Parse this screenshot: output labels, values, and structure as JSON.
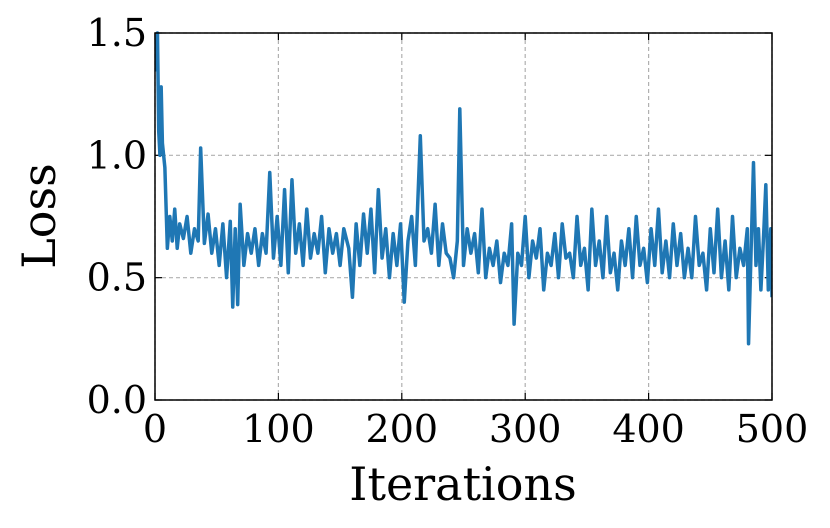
{
  "chart_data": {
    "type": "line",
    "xlabel": "Iterations",
    "ylabel": "Loss",
    "x": [
      0,
      1,
      2,
      3,
      4,
      5,
      6,
      8,
      10,
      12,
      14,
      16,
      18,
      20,
      23,
      26,
      29,
      32,
      35,
      37,
      40,
      43,
      46,
      49,
      52,
      55,
      58,
      61,
      63,
      65,
      67,
      69,
      72,
      75,
      78,
      81,
      84,
      87,
      90,
      93,
      96,
      99,
      102,
      105,
      108,
      111,
      114,
      117,
      120,
      123,
      126,
      129,
      132,
      135,
      138,
      141,
      144,
      147,
      150,
      153,
      157,
      160,
      163,
      166,
      169,
      172,
      175,
      178,
      181,
      184,
      187,
      190,
      193,
      196,
      199,
      202,
      205,
      208,
      211,
      215,
      218,
      221,
      224,
      227,
      230,
      233,
      236,
      239,
      242,
      245,
      247,
      250,
      253,
      256,
      259,
      262,
      265,
      268,
      271,
      274,
      277,
      280,
      283,
      286,
      289,
      291,
      294,
      297,
      300,
      303,
      306,
      309,
      312,
      315,
      318,
      321,
      324,
      327,
      330,
      333,
      336,
      339,
      342,
      345,
      348,
      351,
      354,
      357,
      360,
      363,
      366,
      369,
      372,
      375,
      378,
      381,
      384,
      387,
      390,
      393,
      396,
      399,
      402,
      405,
      408,
      411,
      414,
      417,
      420,
      423,
      426,
      429,
      432,
      435,
      438,
      441,
      444,
      447,
      450,
      453,
      456,
      459,
      462,
      465,
      468,
      471,
      474,
      477,
      480,
      481,
      483,
      485,
      487,
      489,
      491,
      493,
      495,
      497,
      499,
      500
    ],
    "series": [
      {
        "color": "#1f77b4",
        "values": [
          1.45,
          1.35,
          1.5,
          1.1,
          1.0,
          1.28,
          1.05,
          0.95,
          0.62,
          0.75,
          0.65,
          0.78,
          0.62,
          0.72,
          0.66,
          0.75,
          0.6,
          0.7,
          0.65,
          1.03,
          0.64,
          0.76,
          0.6,
          0.7,
          0.55,
          0.72,
          0.5,
          0.73,
          0.38,
          0.7,
          0.39,
          0.8,
          0.55,
          0.68,
          0.6,
          0.7,
          0.55,
          0.68,
          0.6,
          0.93,
          0.58,
          0.75,
          0.55,
          0.86,
          0.52,
          0.9,
          0.6,
          0.72,
          0.55,
          0.78,
          0.58,
          0.68,
          0.6,
          0.75,
          0.52,
          0.7,
          0.6,
          0.68,
          0.55,
          0.7,
          0.62,
          0.42,
          0.72,
          0.55,
          0.76,
          0.6,
          0.78,
          0.52,
          0.86,
          0.58,
          0.7,
          0.5,
          0.68,
          0.55,
          0.72,
          0.4,
          0.65,
          0.75,
          0.55,
          1.08,
          0.65,
          0.7,
          0.6,
          0.8,
          0.55,
          0.72,
          0.6,
          0.58,
          0.5,
          0.65,
          1.19,
          0.55,
          0.7,
          0.6,
          0.68,
          0.52,
          0.78,
          0.5,
          0.62,
          0.55,
          0.65,
          0.48,
          0.6,
          0.55,
          0.72,
          0.31,
          0.6,
          0.55,
          0.75,
          0.5,
          0.65,
          0.58,
          0.7,
          0.45,
          0.6,
          0.55,
          0.68,
          0.5,
          0.72,
          0.58,
          0.6,
          0.5,
          0.75,
          0.55,
          0.62,
          0.45,
          0.78,
          0.55,
          0.65,
          0.5,
          0.75,
          0.52,
          0.6,
          0.45,
          0.65,
          0.55,
          0.7,
          0.5,
          0.75,
          0.55,
          0.62,
          0.48,
          0.7,
          0.55,
          0.78,
          0.52,
          0.65,
          0.5,
          0.72,
          0.55,
          0.68,
          0.5,
          0.62,
          0.5,
          0.75,
          0.55,
          0.6,
          0.45,
          0.7,
          0.52,
          0.78,
          0.5,
          0.65,
          0.45,
          0.75,
          0.5,
          0.62,
          0.55,
          0.7,
          0.23,
          0.6,
          0.97,
          0.55,
          0.7,
          0.45,
          0.65,
          0.88,
          0.45,
          0.7,
          0.42
        ]
      }
    ],
    "xlim": [
      0,
      500
    ],
    "xticks": [
      0,
      100,
      200,
      300,
      400,
      500
    ],
    "ylim": [
      0,
      1.5
    ],
    "yticks": [
      {
        "value": 0,
        "label": "0.0"
      },
      0.5,
      {
        "value": 1,
        "label": "1.0"
      },
      1.5
    ],
    "grid": true
  }
}
